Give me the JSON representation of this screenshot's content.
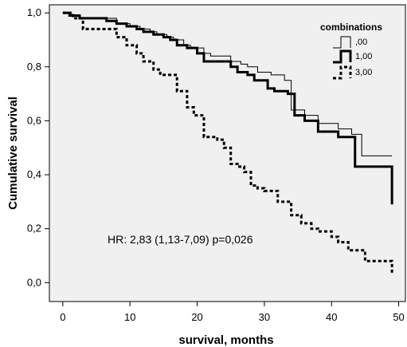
{
  "chart_data": {
    "type": "line",
    "subtype": "kaplan-meier step plot",
    "xlabel": "survival, months",
    "ylabel": "Cumulative survival",
    "xlim": [
      -2,
      51
    ],
    "ylim": [
      -0.07,
      1.03
    ],
    "x_ticks": [
      {
        "value": 0,
        "label": "0"
      },
      {
        "value": 10,
        "label": "10"
      },
      {
        "value": 20,
        "label": "20"
      },
      {
        "value": 30,
        "label": "30"
      },
      {
        "value": 40,
        "label": "40"
      },
      {
        "value": 50,
        "label": "50"
      }
    ],
    "y_ticks": [
      {
        "value": 0.0,
        "label": "0,0"
      },
      {
        "value": 0.2,
        "label": "0,2"
      },
      {
        "value": 0.4,
        "label": "0,4"
      },
      {
        "value": 0.6,
        "label": "0,6"
      },
      {
        "value": 0.8,
        "label": "0,8"
      },
      {
        "value": 1.0,
        "label": "1,0"
      }
    ],
    "grid": false,
    "background_color": "#f0f0f0",
    "legend": {
      "title": "combinations",
      "placement": "top-right"
    },
    "annotation": "HR: 2,83 (1,13-7,09) p=0,026",
    "series": [
      {
        "name": ",00",
        "style": "thin",
        "x": [
          0,
          1.2,
          2.5,
          8,
          10,
          11.5,
          13,
          14,
          15.5,
          16.5,
          18,
          19,
          21,
          22,
          25,
          26.5,
          27.5,
          29,
          31,
          33,
          34,
          36,
          38,
          41,
          43,
          44.5,
          49
        ],
        "y": [
          1.0,
          0.99,
          0.98,
          0.96,
          0.95,
          0.94,
          0.93,
          0.92,
          0.91,
          0.9,
          0.88,
          0.87,
          0.85,
          0.84,
          0.82,
          0.81,
          0.8,
          0.78,
          0.77,
          0.75,
          0.64,
          0.62,
          0.59,
          0.57,
          0.55,
          0.47,
          0.47
        ]
      },
      {
        "name": "1,00",
        "style": "thick",
        "x": [
          0,
          1,
          2.5,
          6.5,
          8,
          9.5,
          11,
          12,
          13.5,
          15,
          16,
          17,
          18.5,
          20,
          21,
          25,
          26,
          27.5,
          28.5,
          30.5,
          31.5,
          33.5,
          34.5,
          36,
          38,
          41,
          43.5,
          49
        ],
        "y": [
          1.0,
          0.99,
          0.98,
          0.97,
          0.96,
          0.95,
          0.94,
          0.93,
          0.92,
          0.91,
          0.9,
          0.88,
          0.87,
          0.85,
          0.82,
          0.8,
          0.78,
          0.77,
          0.75,
          0.72,
          0.71,
          0.7,
          0.62,
          0.6,
          0.56,
          0.54,
          0.43,
          0.29
        ]
      },
      {
        "name": "3,00",
        "style": "dashed",
        "x": [
          0,
          1.5,
          3,
          8,
          9.5,
          11,
          12,
          13.5,
          14.5,
          17,
          18.5,
          19.5,
          21,
          23,
          24,
          25,
          26,
          27,
          28,
          29,
          30,
          32,
          34,
          35.5,
          37,
          38,
          40,
          41,
          42.5,
          45,
          49
        ],
        "y": [
          1.0,
          0.98,
          0.94,
          0.91,
          0.88,
          0.85,
          0.82,
          0.79,
          0.77,
          0.71,
          0.65,
          0.62,
          0.54,
          0.53,
          0.5,
          0.44,
          0.43,
          0.41,
          0.36,
          0.35,
          0.34,
          0.3,
          0.25,
          0.22,
          0.2,
          0.19,
          0.17,
          0.15,
          0.12,
          0.08,
          0.03
        ]
      }
    ]
  }
}
